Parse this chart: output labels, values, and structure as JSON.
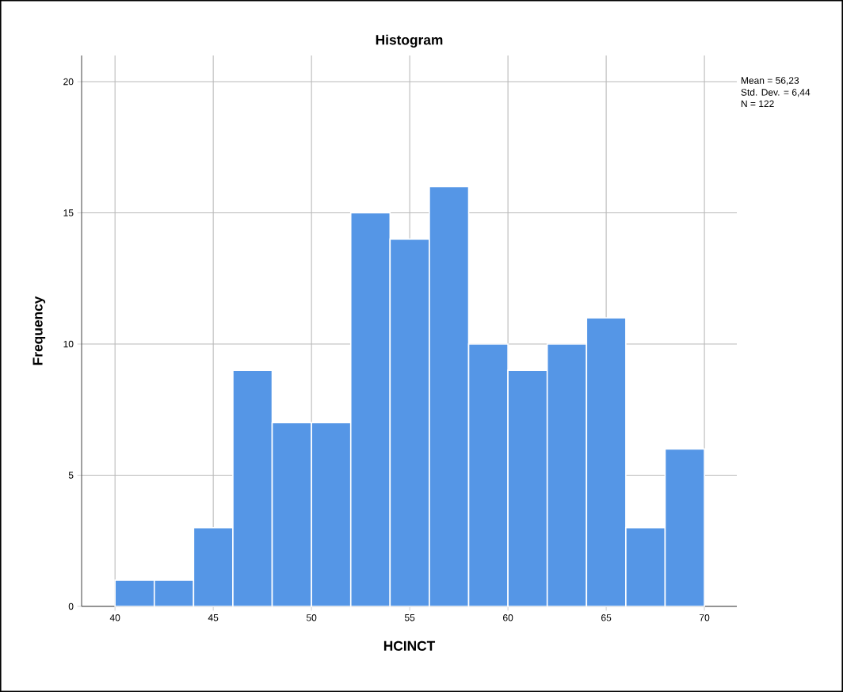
{
  "chart_data": {
    "type": "histogram",
    "title": "Histogram",
    "xlabel": "HCINCT",
    "ylabel": "Frequency",
    "bins": [
      40,
      42,
      44,
      46,
      48,
      50,
      52,
      54,
      56,
      58,
      60,
      62,
      64,
      66,
      68,
      70
    ],
    "values": [
      1,
      1,
      3,
      9,
      7,
      7,
      15,
      14,
      16,
      10,
      9,
      10,
      11,
      3,
      6
    ],
    "color": "#5596e6",
    "xlim": [
      38.3,
      71.65
    ],
    "ylim": [
      0,
      21
    ],
    "xticks": [
      40,
      45,
      50,
      55,
      60,
      65,
      70
    ],
    "yticks": [
      0,
      5,
      10,
      15,
      20
    ],
    "grid": true,
    "annotations": [
      "Mean = 56,23",
      "Std. Dev. = 6,44",
      "N = 122"
    ]
  }
}
